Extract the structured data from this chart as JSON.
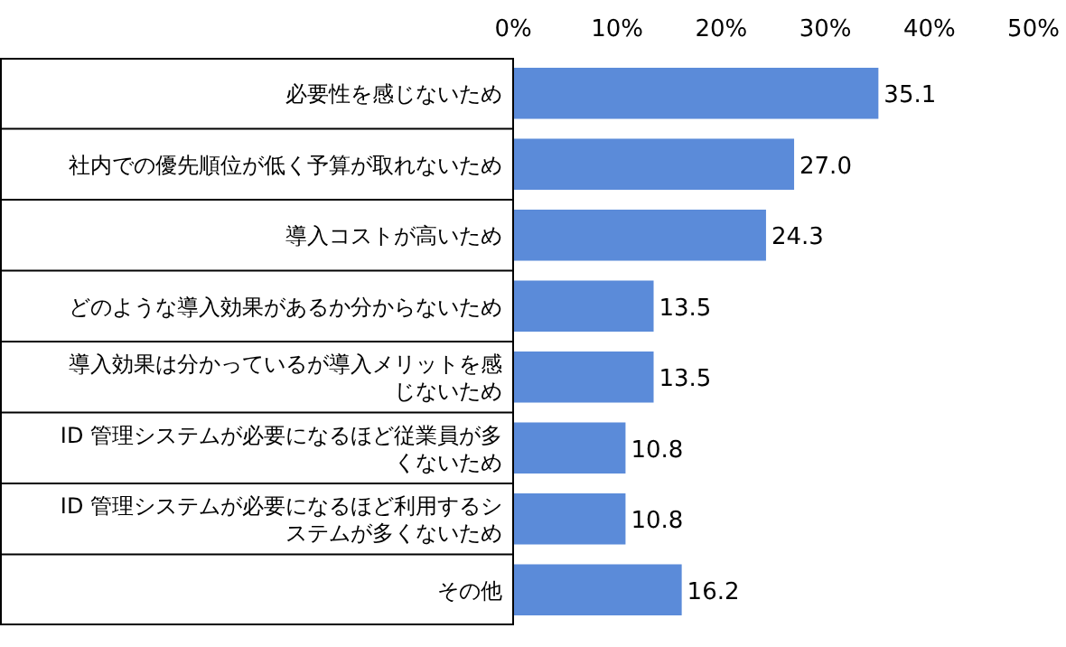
{
  "chart_data": {
    "type": "bar",
    "orientation": "horizontal",
    "categories": [
      "必要性を感じないため",
      "社内での優先順位が低く予算が取れないため",
      "導入コストが高いため",
      "どのような導入効果があるか分からないため",
      "導入効果は分かっているが導入メリットを感じないため",
      "ID 管理システムが必要になるほど従業員が多くないため",
      "ID 管理システムが必要になるほど利用するシステムが多くないため",
      "その他"
    ],
    "values": [
      35.1,
      27.0,
      24.3,
      13.5,
      13.5,
      10.8,
      10.8,
      16.2
    ],
    "value_labels": [
      "35.1",
      "27.0",
      "24.3",
      "13.5",
      "13.5",
      "10.8",
      "10.8",
      "16.2"
    ],
    "color": "#5b8bd9",
    "xlim": [
      0,
      50
    ],
    "xticks": [
      {
        "value": 0,
        "label": "0%"
      },
      {
        "value": 10,
        "label": "10%"
      },
      {
        "value": 20,
        "label": "20%"
      },
      {
        "value": 30,
        "label": "30%"
      },
      {
        "value": 40,
        "label": "40%"
      },
      {
        "value": 50,
        "label": "50%"
      }
    ],
    "grid": false
  }
}
